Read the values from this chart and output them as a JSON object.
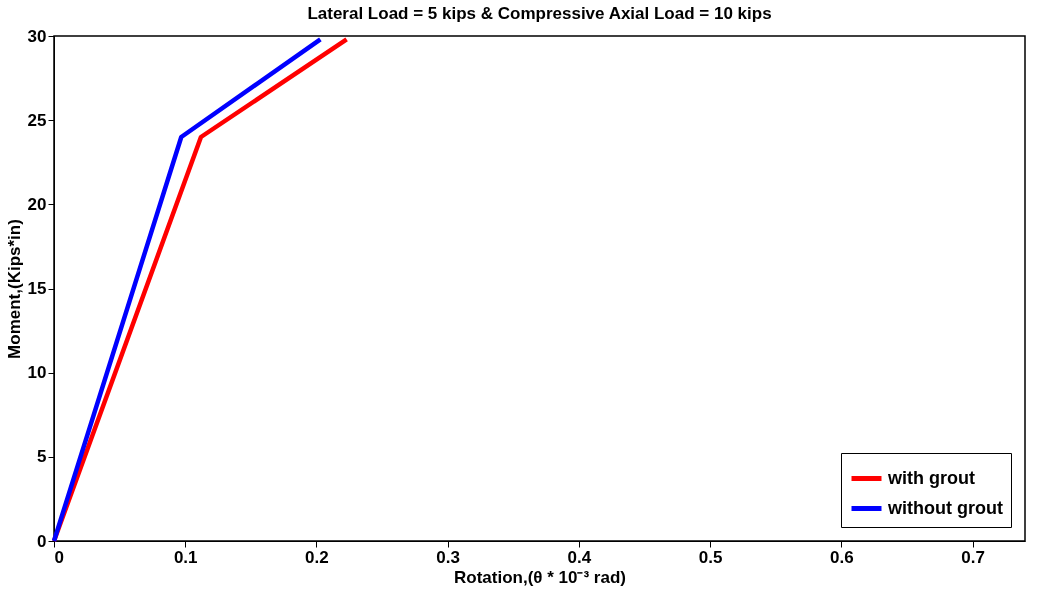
{
  "chart_data": {
    "type": "line",
    "title": "Lateral Load = 5 kips & Compressive Axial Load = 10 kips",
    "xlabel": "Rotation,(θ * 10⁻³ rad)",
    "ylabel": "Moment,(Kips*in)",
    "series": [
      {
        "name": "with grout",
        "color": "#ff0000",
        "x": [
          0,
          0.112,
          0.223
        ],
        "values": [
          0,
          24,
          29.8
        ]
      },
      {
        "name": "without grout",
        "color": "#0000ff",
        "x": [
          0,
          0.097,
          0.203
        ],
        "values": [
          0,
          24,
          29.8
        ]
      }
    ],
    "xlim": [
      0,
      0.74
    ],
    "xticks": [
      0,
      0.1,
      0.2,
      0.3,
      0.4,
      0.5,
      0.6,
      0.7
    ],
    "ylim": [
      0,
      30
    ],
    "yticks": [
      0,
      5,
      10,
      15,
      20,
      25,
      30
    ],
    "grid": false,
    "legend": "bottom right",
    "line_style": "solid",
    "marker": "none"
  }
}
